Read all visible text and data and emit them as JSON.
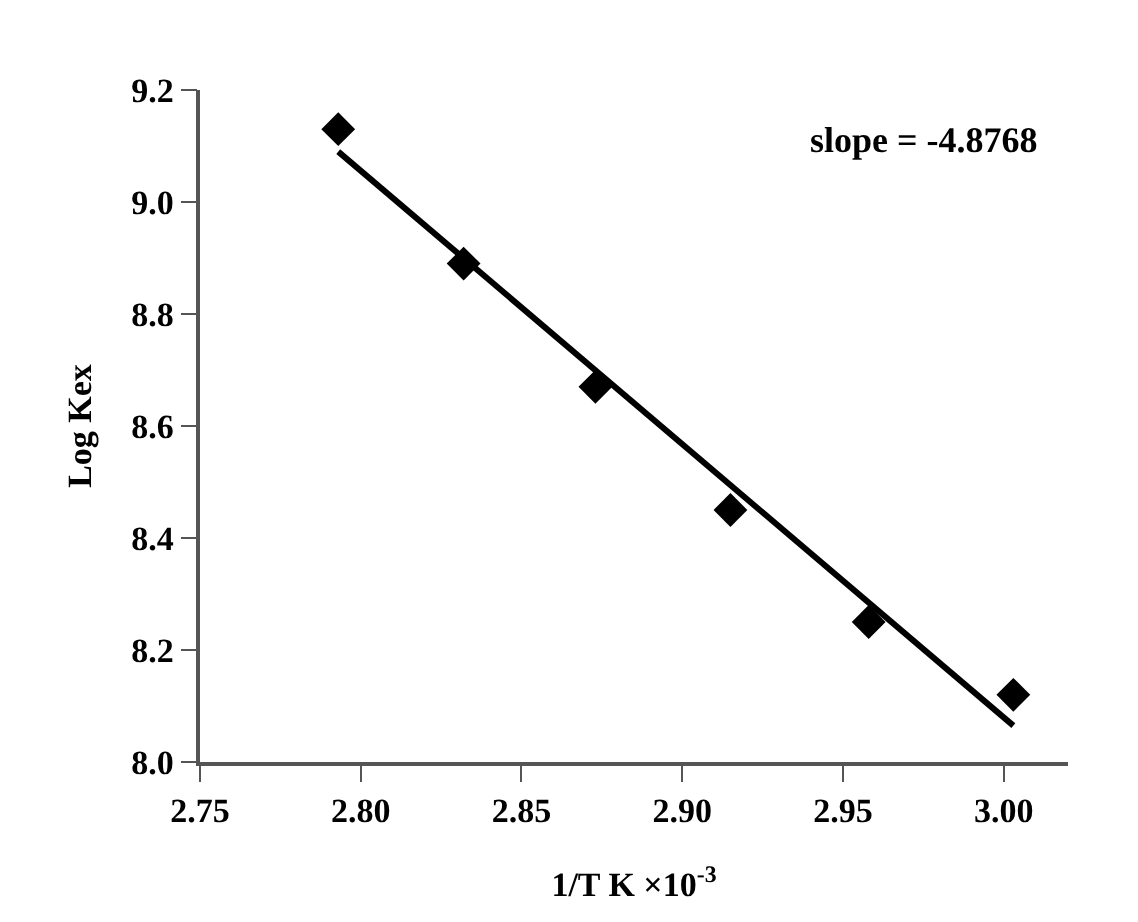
{
  "chart_data": {
    "type": "scatter",
    "xlabel": "1/T K ×10$^{-3}$",
    "ylabel": "Log Kex",
    "annotations": [
      "slope = -4.8768"
    ],
    "series": [
      {
        "color": "#000000",
        "marker": "diamond",
        "x": [
          2.793,
          2.832,
          2.873,
          2.915,
          2.958,
          3.003
        ],
        "values": [
          9.13,
          8.89,
          8.67,
          8.45,
          8.25,
          8.12
        ]
      },
      {
        "type": "line",
        "color": "#000000",
        "x": [
          2.793,
          3.003
        ],
        "values": [
          9.09,
          8.065
        ]
      }
    ],
    "xlim": [
      2.75,
      3.02
    ],
    "xticks": [
      {
        "value": 2.75,
        "label": "2.75"
      },
      {
        "value": 2.8,
        "label": "2.80"
      },
      {
        "value": 2.85,
        "label": "2.85"
      },
      {
        "value": 2.9,
        "label": "2.90"
      },
      {
        "value": 2.95,
        "label": "2.95"
      },
      {
        "value": 3.0,
        "label": "3.00"
      }
    ],
    "ylim": [
      8.0,
      9.2
    ],
    "yticks": [
      {
        "value": 8.0,
        "label": "8.0"
      },
      {
        "value": 8.2,
        "label": "8.2"
      },
      {
        "value": 8.4,
        "label": "8.4"
      },
      {
        "value": 8.6,
        "label": "8.6"
      },
      {
        "value": 8.8,
        "label": "8.8"
      },
      {
        "value": 9.0,
        "label": "9.0"
      },
      {
        "value": 9.2,
        "label": "9.2"
      }
    ]
  }
}
